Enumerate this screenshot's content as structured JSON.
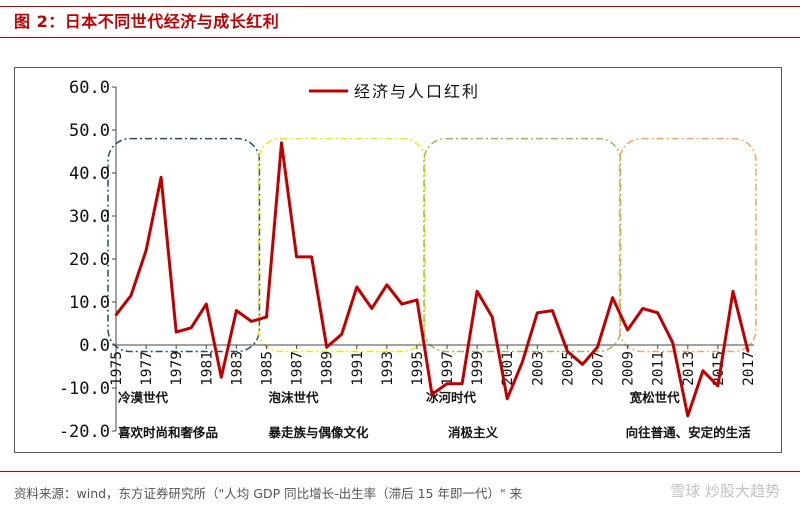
{
  "figure": {
    "title": "图 2：日本不同世代经济与成长红利",
    "source": "资料来源：wind，东方证券研究所（\"人均 GDP 同比增长-出生率（滞后 15 年即一代）\" 来",
    "watermark": "雪球 炒股大趋势"
  },
  "colors": {
    "accent": "#c00000",
    "series": "#c00000"
  },
  "chart_data": {
    "type": "line",
    "title": "",
    "xlabel": "",
    "ylabel": "",
    "ylim": [
      -20,
      60
    ],
    "yticks": [
      "60.0",
      "50.0",
      "40.0",
      "30.0",
      "20.0",
      "10.0",
      "0.0",
      "-10.0",
      "-20.0"
    ],
    "xticks": [
      "1975",
      "1977",
      "1979",
      "1981",
      "1983",
      "1985",
      "1987",
      "1989",
      "1991",
      "1993",
      "1995",
      "1997",
      "1999",
      "2001",
      "2003",
      "2005",
      "2007",
      "2009",
      "2011",
      "2013",
      "2015",
      "2017"
    ],
    "legend": "top-center",
    "grid": false,
    "series": [
      {
        "name": "经济与人口红利",
        "x": [
          1975,
          1976,
          1977,
          1978,
          1979,
          1980,
          1981,
          1982,
          1983,
          1984,
          1985,
          1986,
          1987,
          1988,
          1989,
          1990,
          1991,
          1992,
          1993,
          1994,
          1995,
          1996,
          1997,
          1998,
          1999,
          2000,
          2001,
          2002,
          2003,
          2004,
          2005,
          2006,
          2007,
          2008,
          2009,
          2010,
          2011,
          2012,
          2013,
          2014,
          2015,
          2016,
          2017
        ],
        "values": [
          7.0,
          11.5,
          22.0,
          39.0,
          3.0,
          4.0,
          9.5,
          -7.5,
          8.0,
          5.5,
          6.5,
          47.0,
          20.5,
          20.5,
          -0.5,
          2.5,
          13.5,
          8.5,
          14.0,
          9.5,
          10.5,
          -11.5,
          -9.0,
          -9.0,
          12.5,
          6.5,
          -12.5,
          -4.0,
          7.5,
          8.0,
          -1.5,
          -4.5,
          -0.5,
          11.0,
          3.5,
          8.5,
          7.5,
          0.5,
          -16.5,
          -6.0,
          -9.5,
          12.5,
          -1.5
        ]
      }
    ],
    "eras": [
      {
        "name": "冷漠世代",
        "desc": "喜欢时尚和奢侈品",
        "color": "#1f4e79",
        "from": 1975,
        "to": 1984
      },
      {
        "name": "泡沫世代",
        "desc": "暴走族与偶像文化",
        "color": "#f2e600",
        "from": 1985,
        "to": 1995
      },
      {
        "name": "冰河时代",
        "desc": "消极主义",
        "color": "#92c050",
        "from": 1996,
        "to": 2008
      },
      {
        "name": "宽松世代",
        "desc": "向往普通、安定的生活",
        "color": "#f4a460",
        "from": 2009,
        "to": 2017
      }
    ]
  }
}
